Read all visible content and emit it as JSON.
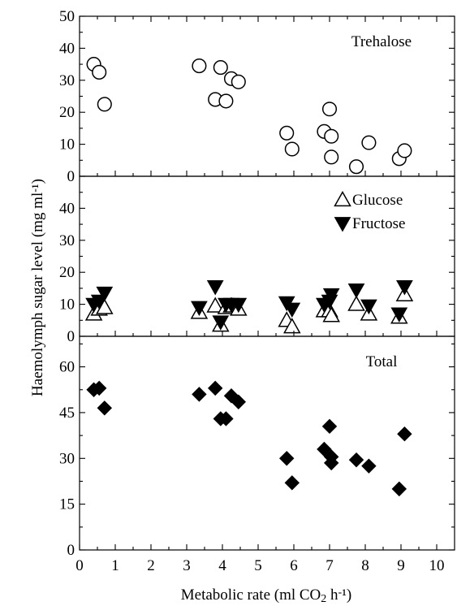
{
  "chart_data": {
    "type": "scatter",
    "xlabel": "Metabolic rate (ml CO₂ h⁻¹)",
    "ylabel": "Haemolymph sugar level (mg ml⁻¹)",
    "xlim": [
      0,
      10.5
    ],
    "x_ticks": [
      "0",
      "1",
      "2",
      "3",
      "4",
      "5",
      "6",
      "7",
      "8",
      "9",
      "10"
    ],
    "grid": false,
    "panels": [
      {
        "id": "trehalose",
        "label": "Trehalose",
        "ylim": [
          0,
          50
        ],
        "y_ticks": [
          "0",
          "10",
          "20",
          "30",
          "40",
          "50"
        ],
        "series": [
          {
            "marker": "open-circle",
            "points": [
              [
                0.4,
                35
              ],
              [
                0.55,
                32.5
              ],
              [
                0.7,
                22.5
              ],
              [
                3.35,
                34.5
              ],
              [
                3.8,
                24
              ],
              [
                3.95,
                34
              ],
              [
                4.1,
                23.5
              ],
              [
                4.25,
                30.5
              ],
              [
                4.45,
                29.5
              ],
              [
                5.8,
                13.5
              ],
              [
                5.95,
                8.5
              ],
              [
                6.85,
                14
              ],
              [
                7.0,
                21
              ],
              [
                7.05,
                12.5
              ],
              [
                7.05,
                6
              ],
              [
                7.75,
                3
              ],
              [
                8.1,
                10.5
              ],
              [
                8.95,
                5.5
              ],
              [
                9.1,
                8
              ]
            ]
          }
        ]
      },
      {
        "id": "glucose-fructose",
        "ylim": [
          0,
          50
        ],
        "y_ticks": [
          "0",
          "10",
          "20",
          "30",
          "40"
        ],
        "legend_position": "top-right",
        "series": [
          {
            "name": "Glucose",
            "marker": "open-triangle-up",
            "points": [
              [
                0.4,
                7
              ],
              [
                0.55,
                8.5
              ],
              [
                0.7,
                9
              ],
              [
                3.35,
                7.5
              ],
              [
                3.8,
                9.5
              ],
              [
                3.95,
                3.5
              ],
              [
                4.1,
                9
              ],
              [
                4.25,
                9.5
              ],
              [
                4.45,
                8.5
              ],
              [
                5.8,
                5
              ],
              [
                5.95,
                3
              ],
              [
                6.85,
                8
              ],
              [
                7.0,
                8
              ],
              [
                7.05,
                6.5
              ],
              [
                7.75,
                10
              ],
              [
                8.1,
                7
              ],
              [
                8.95,
                6
              ],
              [
                9.1,
                13
              ]
            ]
          },
          {
            "name": "Fructose",
            "marker": "filled-triangle-down",
            "points": [
              [
                0.4,
                10
              ],
              [
                0.55,
                11
              ],
              [
                0.7,
                13.5
              ],
              [
                3.35,
                9
              ],
              [
                3.8,
                15.5
              ],
              [
                3.95,
                4.5
              ],
              [
                4.1,
                10
              ],
              [
                4.25,
                10
              ],
              [
                4.45,
                10
              ],
              [
                5.8,
                10.5
              ],
              [
                5.95,
                8.5
              ],
              [
                6.85,
                10
              ],
              [
                7.0,
                11
              ],
              [
                7.05,
                13
              ],
              [
                7.75,
                14.5
              ],
              [
                8.1,
                9.5
              ],
              [
                8.95,
                7
              ],
              [
                9.1,
                15.5
              ]
            ]
          }
        ]
      },
      {
        "id": "total",
        "label": "Total",
        "ylim": [
          0,
          70
        ],
        "y_ticks": [
          "0",
          "15",
          "30",
          "45",
          "60"
        ],
        "series": [
          {
            "marker": "filled-diamond",
            "points": [
              [
                0.4,
                52.5
              ],
              [
                0.55,
                53
              ],
              [
                0.7,
                46.5
              ],
              [
                3.35,
                51
              ],
              [
                3.8,
                53
              ],
              [
                3.95,
                43
              ],
              [
                4.1,
                43
              ],
              [
                4.25,
                50.5
              ],
              [
                4.45,
                48.5
              ],
              [
                5.8,
                30
              ],
              [
                5.95,
                22
              ],
              [
                6.85,
                33
              ],
              [
                7.0,
                40.5
              ],
              [
                7.05,
                30.5
              ],
              [
                7.05,
                28.5
              ],
              [
                7.75,
                29.5
              ],
              [
                8.1,
                27.5
              ],
              [
                8.95,
                20
              ],
              [
                9.1,
                38
              ]
            ]
          }
        ]
      }
    ]
  }
}
